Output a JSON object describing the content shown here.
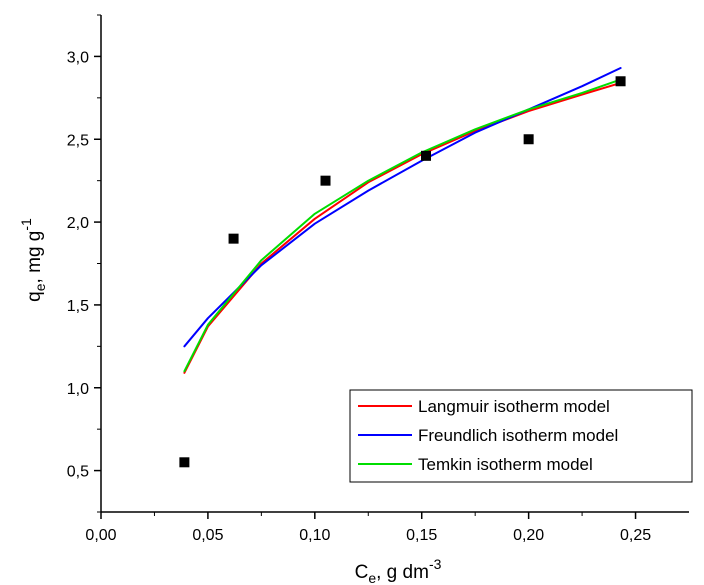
{
  "chart_data": {
    "type": "scatter",
    "xlabel": {
      "main": "C",
      "sub": "e",
      "rest": ", g dm",
      "sup": "-3"
    },
    "ylabel": {
      "main": "q",
      "sub": "e",
      "rest": ", mg g",
      "sup": "-1"
    },
    "xlim": [
      0,
      0.275
    ],
    "ylim": [
      0.25,
      3.25
    ],
    "xticks": [
      0,
      0.05,
      0.1,
      0.15,
      0.2,
      0.25
    ],
    "xtick_labels": [
      "0,00",
      "0,05",
      "0,10",
      "0,15",
      "0,20",
      "0,25"
    ],
    "yticks": [
      0.5,
      1.0,
      1.5,
      2.0,
      2.5,
      3.0
    ],
    "ytick_labels": [
      "0,5",
      "1,0",
      "1,5",
      "2,0",
      "2,5",
      "3,0"
    ],
    "grid": false,
    "legend_position": "bottom-right",
    "points": {
      "marker": "square",
      "color": "#000000",
      "x": [
        0.039,
        0.062,
        0.105,
        0.152,
        0.2,
        0.243
      ],
      "y": [
        0.55,
        1.9,
        2.25,
        2.4,
        2.5,
        2.85
      ]
    },
    "series": [
      {
        "name": "Langmuir isotherm model",
        "color": "#ff0000",
        "x": [
          0.039,
          0.05,
          0.075,
          0.1,
          0.125,
          0.15,
          0.175,
          0.2,
          0.225,
          0.243
        ],
        "y": [
          1.09,
          1.37,
          1.75,
          2.02,
          2.24,
          2.41,
          2.55,
          2.67,
          2.77,
          2.84
        ]
      },
      {
        "name": "Freundlich isotherm model",
        "color": "#0000ff",
        "x": [
          0.039,
          0.05,
          0.075,
          0.1,
          0.125,
          0.15,
          0.175,
          0.2,
          0.225,
          0.243
        ],
        "y": [
          1.25,
          1.42,
          1.74,
          1.99,
          2.19,
          2.37,
          2.54,
          2.68,
          2.82,
          2.93
        ]
      },
      {
        "name": "Temkin isotherm model",
        "color": "#00dd00",
        "x": [
          0.039,
          0.05,
          0.075,
          0.1,
          0.125,
          0.15,
          0.175,
          0.2,
          0.225,
          0.243
        ],
        "y": [
          1.1,
          1.38,
          1.77,
          2.05,
          2.25,
          2.42,
          2.56,
          2.68,
          2.78,
          2.86
        ]
      }
    ]
  }
}
